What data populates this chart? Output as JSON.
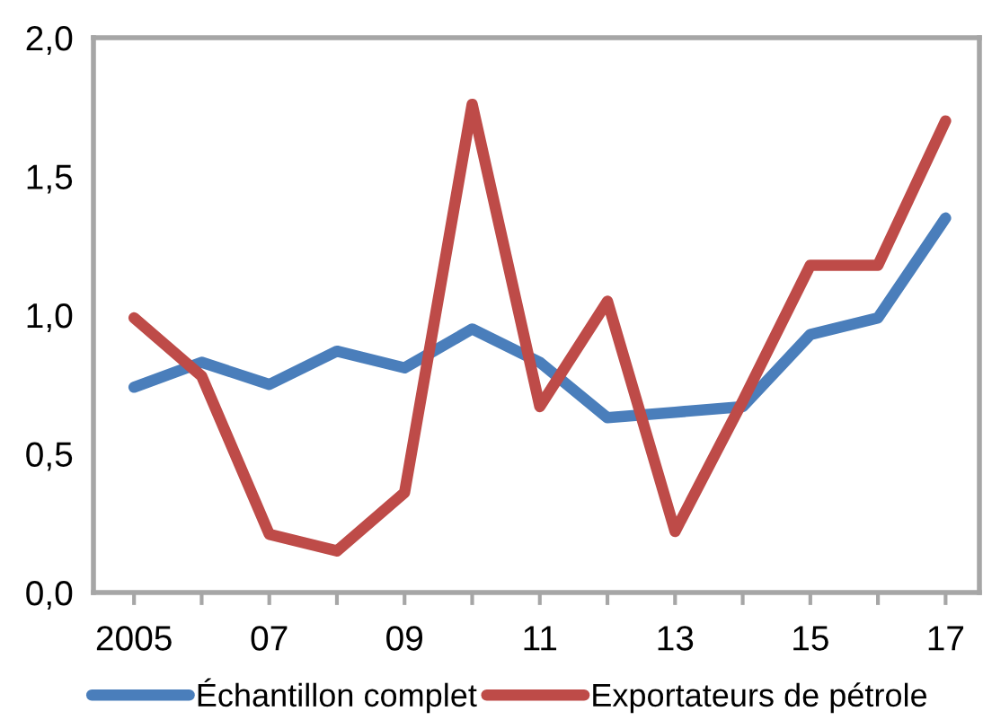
{
  "chart_data": {
    "type": "line",
    "categories": [
      "2005",
      null,
      "07",
      null,
      "09",
      null,
      "11",
      null,
      "13",
      null,
      "15",
      null,
      "17"
    ],
    "series": [
      {
        "name": "Échantillon complet",
        "color": "#4a7ebb",
        "values": [
          0.74,
          0.83,
          0.75,
          0.87,
          0.81,
          0.95,
          0.83,
          0.63,
          0.65,
          0.67,
          0.93,
          0.99,
          1.35
        ]
      },
      {
        "name": "Exportateurs de pétrole",
        "color": "#be4b48",
        "values": [
          0.99,
          0.78,
          0.21,
          0.15,
          0.36,
          1.76,
          0.67,
          1.05,
          0.22,
          0.69,
          1.18,
          1.18,
          1.7
        ]
      }
    ],
    "ylim": [
      0,
      2
    ],
    "yticks": [
      {
        "value": 0,
        "label": "0,0"
      },
      {
        "value": 0.5,
        "label": "0,5"
      },
      {
        "value": 1,
        "label": "1,0"
      },
      {
        "value": 1.5,
        "label": "1,5"
      },
      {
        "value": 2,
        "label": "2,0"
      }
    ],
    "grid": false,
    "legend": "bottom",
    "marker": "none",
    "line_style": "solid"
  }
}
